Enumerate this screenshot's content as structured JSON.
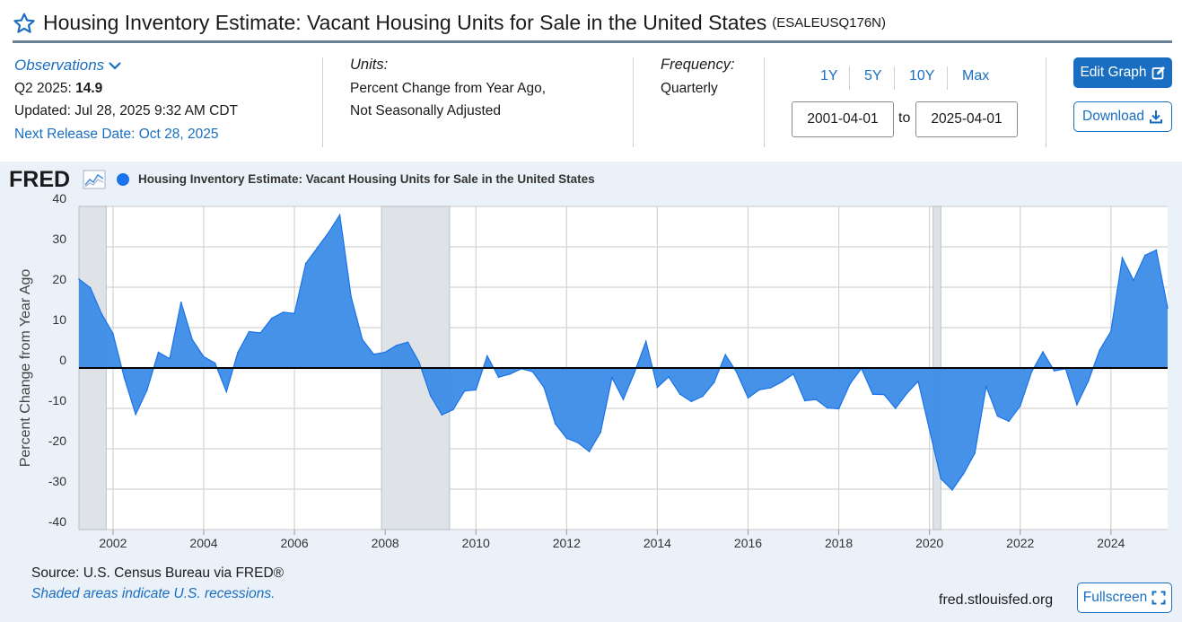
{
  "header": {
    "title": "Housing Inventory Estimate: Vacant Housing Units for Sale in the United States",
    "series_id": "(ESALEUSQ176N)"
  },
  "observations": {
    "heading": "Observations",
    "period_label": "Q2 2025:",
    "value": "14.9",
    "updated": "Updated: Jul 28, 2025 9:32 AM CDT",
    "next_release": "Next Release Date: Oct 28, 2025"
  },
  "units": {
    "heading": "Units:",
    "line1": "Percent Change from Year Ago,",
    "line2": "Not Seasonally Adjusted"
  },
  "frequency": {
    "heading": "Frequency:",
    "value": "Quarterly"
  },
  "range": {
    "buttons": [
      "1Y",
      "5Y",
      "10Y",
      "Max"
    ],
    "start": "2001-04-01",
    "to_label": "to",
    "end": "2025-04-01"
  },
  "actions": {
    "edit_graph": "Edit Graph",
    "download": "Download",
    "fullscreen": "Fullscreen"
  },
  "chart_header": {
    "logo": "FRED",
    "legend_label": "Housing Inventory Estimate: Vacant Housing Units for Sale in the United States"
  },
  "footer": {
    "source": "Source: U.S. Census Bureau via FRED®",
    "shading_note": "Shaded areas indicate U.S. recessions.",
    "site": "fred.stlouisfed.org"
  },
  "colors": {
    "accent": "#1a6ec1",
    "series_fill": "#3c8ce7",
    "series_line": "#1a73e8",
    "recession": "#dfe3e8",
    "panel_bg": "#eaf1f8"
  },
  "chart_data": {
    "type": "area",
    "title": "Housing Inventory Estimate: Vacant Housing Units for Sale in the United States",
    "xlabel": "",
    "ylabel": "Percent Change from Year Ago",
    "ylim": [
      -40,
      40
    ],
    "yticks": [
      40,
      30,
      20,
      10,
      0,
      -10,
      -20,
      -30,
      -40
    ],
    "xlim": [
      2001.25,
      2025.25
    ],
    "xticks": [
      2002,
      2004,
      2006,
      2008,
      2010,
      2012,
      2014,
      2016,
      2018,
      2020,
      2022,
      2024
    ],
    "recessions": [
      [
        2001.25,
        2001.85
      ],
      [
        2007.92,
        2009.42
      ],
      [
        2020.08,
        2020.25
      ]
    ],
    "series": [
      {
        "name": "Housing Inventory Estimate: Vacant Housing Units for Sale in the United States",
        "x": [
          2001.25,
          2001.5,
          2001.75,
          2002.0,
          2002.25,
          2002.5,
          2002.75,
          2003.0,
          2003.25,
          2003.5,
          2003.75,
          2004.0,
          2004.25,
          2004.5,
          2004.75,
          2005.0,
          2005.25,
          2005.5,
          2005.75,
          2006.0,
          2006.25,
          2006.5,
          2006.75,
          2007.0,
          2007.25,
          2007.5,
          2007.75,
          2008.0,
          2008.25,
          2008.5,
          2008.75,
          2009.0,
          2009.25,
          2009.5,
          2009.75,
          2010.0,
          2010.25,
          2010.5,
          2010.75,
          2011.0,
          2011.25,
          2011.5,
          2011.75,
          2012.0,
          2012.25,
          2012.5,
          2012.75,
          2013.0,
          2013.25,
          2013.5,
          2013.75,
          2014.0,
          2014.25,
          2014.5,
          2014.75,
          2015.0,
          2015.25,
          2015.5,
          2015.75,
          2016.0,
          2016.25,
          2016.5,
          2016.75,
          2017.0,
          2017.25,
          2017.5,
          2017.75,
          2018.0,
          2018.25,
          2018.5,
          2018.75,
          2019.0,
          2019.25,
          2019.5,
          2019.75,
          2020.0,
          2020.25,
          2020.5,
          2020.75,
          2021.0,
          2021.25,
          2021.5,
          2021.75,
          2022.0,
          2022.25,
          2022.5,
          2022.75,
          2023.0,
          2023.25,
          2023.5,
          2023.75,
          2024.0,
          2024.25,
          2024.5,
          2024.75,
          2025.0,
          2025.25
        ],
        "values": [
          22.0,
          19.9,
          13.4,
          8.5,
          -2.5,
          -11.5,
          -5.5,
          3.9,
          2.3,
          16.3,
          7.0,
          2.8,
          1.2,
          -5.9,
          3.8,
          9.0,
          8.7,
          12.3,
          13.8,
          13.5,
          25.9,
          29.7,
          33.5,
          37.9,
          17.6,
          7.0,
          3.4,
          3.9,
          5.6,
          6.4,
          1.4,
          -6.9,
          -11.6,
          -10.3,
          -5.7,
          -5.4,
          3.0,
          -2.3,
          -1.5,
          -0.2,
          -0.9,
          -4.8,
          -13.8,
          -17.4,
          -18.5,
          -20.7,
          -15.9,
          -2.4,
          -7.8,
          -1.0,
          6.6,
          -4.8,
          -2.2,
          -6.5,
          -8.3,
          -7.0,
          -3.6,
          3.3,
          -1.1,
          -7.4,
          -5.4,
          -4.9,
          -3.4,
          -1.5,
          -8.1,
          -7.8,
          -9.9,
          -10.1,
          -3.9,
          -0.1,
          -6.5,
          -6.6,
          -10.0,
          -6.3,
          -3.3,
          -15.3,
          -27.4,
          -30.2,
          -26.2,
          -21.1,
          -4.6,
          -11.9,
          -13.2,
          -9.4,
          -1.0,
          4.0,
          -0.7,
          -0.2,
          -9.1,
          -3.3,
          4.4,
          9.1,
          27.3,
          21.7,
          27.9,
          29.2,
          14.9
        ]
      }
    ]
  }
}
